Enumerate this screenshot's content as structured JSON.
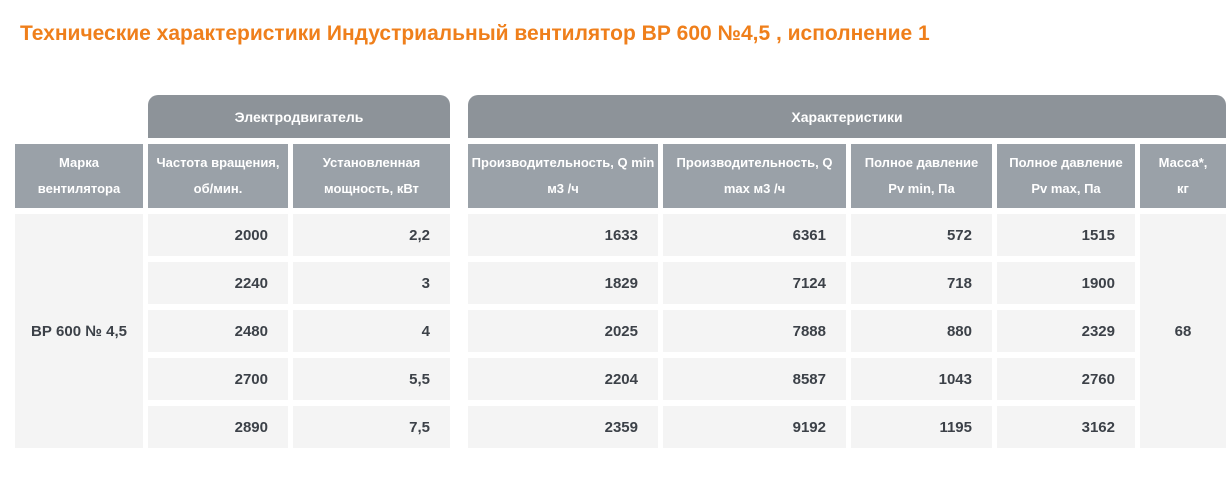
{
  "page": {
    "title": "Технические характеристики Индустриальный вентилятор ВР 600 №4,5 , исполнение 1"
  },
  "colors": {
    "title_orange": "#ef7f1b",
    "group_header_gray": "#8d9399",
    "column_header_gray": "#9aa1a8",
    "cell_background": "#f4f4f4",
    "cell_text": "#3c4148"
  },
  "table": {
    "group_headers": [
      {
        "label": "Электродвигатель"
      },
      {
        "label": "Характеристики"
      }
    ],
    "columns": [
      {
        "line1": "Марка",
        "line2": "вентилятора"
      },
      {
        "line1": "Частота вращения,",
        "line2": "об/мин."
      },
      {
        "line1": "Установленная",
        "line2": "мощность, кВт"
      },
      {
        "line1": "Производительность, Q min",
        "line2": "м3 /ч"
      },
      {
        "line1": "Производительность, Q",
        "line2": "max м3 /ч"
      },
      {
        "line1": "Полное давление",
        "line2": "Pv min, Па"
      },
      {
        "line1": "Полное давление",
        "line2": "Pv max, Па"
      },
      {
        "line1": "Масса*,",
        "line2": "кг"
      }
    ],
    "fan_model": "ВР 600 № 4,5",
    "mass": "68",
    "rows": [
      {
        "rpm": "2000",
        "power": "2,2",
        "q_min": "1633",
        "q_max": "6361",
        "pv_min": "572",
        "pv_max": "1515"
      },
      {
        "rpm": "2240",
        "power": "3",
        "q_min": "1829",
        "q_max": "7124",
        "pv_min": "718",
        "pv_max": "1900"
      },
      {
        "rpm": "2480",
        "power": "4",
        "q_min": "2025",
        "q_max": "7888",
        "pv_min": "880",
        "pv_max": "2329"
      },
      {
        "rpm": "2700",
        "power": "5,5",
        "q_min": "2204",
        "q_max": "8587",
        "pv_min": "1043",
        "pv_max": "2760"
      },
      {
        "rpm": "2890",
        "power": "7,5",
        "q_min": "2359",
        "q_max": "9192",
        "pv_min": "1195",
        "pv_max": "3162"
      }
    ]
  }
}
